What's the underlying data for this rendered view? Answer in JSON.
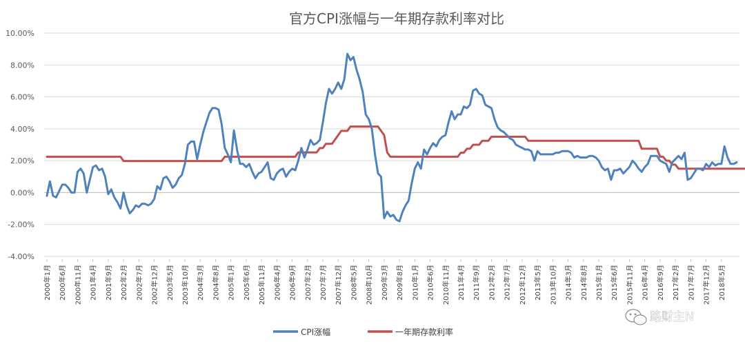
{
  "chart_data": {
    "type": "line",
    "title": "官方CPI涨幅与一年期存款利率对比",
    "ylim": [
      -4,
      10
    ],
    "yticks": [
      "-4.00%",
      "-2.00%",
      "0.00%",
      "2.00%",
      "4.00%",
      "6.00%",
      "8.00%",
      "10.00%"
    ],
    "grid": true,
    "legend_position": "bottom",
    "x_start": "2000-01",
    "x_labels": [
      "2000年1月",
      "2000年6月",
      "2000年11月",
      "2001年4月",
      "2001年9月",
      "2002年2月",
      "2002年7月",
      "2002年12月",
      "2003年5月",
      "2003年10月",
      "2004年3月",
      "2004年8月",
      "2005年1月",
      "2005年6月",
      "2005年11月",
      "2006年4月",
      "2006年9月",
      "2007年2月",
      "2007年7月",
      "2007年12月",
      "2008年5月",
      "2008年10月",
      "2009年3月",
      "2009年8月",
      "2010年1月",
      "2010年6月",
      "2010年11月",
      "2011年4月",
      "2011年9月",
      "2012年2月",
      "2012年7月",
      "2012年12月",
      "2013年5月",
      "2013年10月",
      "2014年3月",
      "2014年8月",
      "2015年1月",
      "2015年6月",
      "2015年11月",
      "2016年4月",
      "2016年9月",
      "2017年2月",
      "2017年7月",
      "2017年12月",
      "2018年5月"
    ],
    "series": [
      {
        "name": "CPI涨幅",
        "color": "#4F81BD",
        "values": [
          -0.2,
          0.7,
          -0.2,
          -0.3,
          0.1,
          0.5,
          0.5,
          0.3,
          0,
          0,
          1.3,
          1.5,
          1.2,
          0,
          0.8,
          1.6,
          1.7,
          1.4,
          1.5,
          1,
          -0.1,
          0.2,
          -0.3,
          -0.6,
          -1,
          0,
          -0.8,
          -1.3,
          -1.1,
          -0.8,
          -0.9,
          -0.7,
          -0.7,
          -0.8,
          -0.7,
          -0.4,
          0.4,
          0.2,
          0.9,
          1,
          0.7,
          0.3,
          0.5,
          0.9,
          1.1,
          1.8,
          3,
          3.2,
          3.2,
          2.1,
          3,
          3.8,
          4.4,
          5,
          5.3,
          5.3,
          5.2,
          4.3,
          2.8,
          2.4,
          1.9,
          3.9,
          2.7,
          1.8,
          1.8,
          1.6,
          1.8,
          1.3,
          0.9,
          1.2,
          1.3,
          1.6,
          1.9,
          0.9,
          0.8,
          1.2,
          1.4,
          1.5,
          1,
          1.3,
          1.5,
          1.4,
          2,
          2.8,
          2.2,
          2.7,
          3.3,
          3,
          3.1,
          3.3,
          4.4,
          5.6,
          6.5,
          6.2,
          6.5,
          6.9,
          6.5,
          7.1,
          8.7,
          8.3,
          8.5,
          7.7,
          7.1,
          6.3,
          4.9,
          4.6,
          4,
          2.4,
          1.2,
          1,
          -1.6,
          -1.2,
          -1.5,
          -1.4,
          -1.7,
          -1.8,
          -1.2,
          -0.8,
          -0.5,
          0.6,
          1.5,
          1.9,
          1.5,
          2.7,
          2.4,
          2.8,
          3.1,
          2.9,
          3.3,
          3.5,
          3.6,
          4.4,
          5.1,
          4.6,
          4.9,
          4.9,
          5.4,
          5.3,
          5.5,
          6.4,
          6.5,
          6.2,
          6.1,
          5.5,
          5.4,
          5.3,
          4.6,
          4.1,
          3.9,
          3.8,
          3.6,
          3.4,
          3.3,
          3,
          2.9,
          2.8,
          2.7,
          2.7,
          2.6,
          2,
          2.6,
          2.4,
          2.4,
          2.4,
          2.4,
          2.4,
          2.5,
          2.5,
          2.6,
          2.6,
          2.6,
          2.5,
          2.2,
          2.3,
          2.2,
          2.2,
          2.2,
          2.3,
          2.3,
          2.2,
          2,
          1.6,
          1.4,
          1.5,
          0.8,
          1.4,
          1.4,
          1.5,
          1.2,
          1.4,
          1.6,
          2,
          1.8,
          1.5,
          1.3,
          1.6,
          1.8,
          2.3,
          2.3,
          2.3,
          2,
          1.9,
          1.8,
          1.3,
          1.9,
          2.1,
          2.3,
          2.1,
          2.5,
          0.8,
          0.9,
          1.2,
          1.5,
          1.5,
          1.4,
          1.8,
          1.6,
          1.9,
          1.7,
          1.8,
          1.8,
          2.9,
          2.2,
          1.8,
          1.8,
          1.9
        ]
      },
      {
        "name": "一年期存款利率",
        "color": "#C0504D",
        "values": [
          2.25,
          2.25,
          2.25,
          2.25,
          2.25,
          2.25,
          2.25,
          2.25,
          2.25,
          2.25,
          2.25,
          2.25,
          2.25,
          2.25,
          2.25,
          2.25,
          2.25,
          2.25,
          2.25,
          2.25,
          2.25,
          2.25,
          2.25,
          2.25,
          2.25,
          1.98,
          1.98,
          1.98,
          1.98,
          1.98,
          1.98,
          1.98,
          1.98,
          1.98,
          1.98,
          1.98,
          1.98,
          1.98,
          1.98,
          1.98,
          1.98,
          1.98,
          1.98,
          1.98,
          1.98,
          1.98,
          1.98,
          1.98,
          1.98,
          1.98,
          1.98,
          1.98,
          1.98,
          1.98,
          1.98,
          1.98,
          1.98,
          1.98,
          2.25,
          2.25,
          2.25,
          2.25,
          2.25,
          2.25,
          2.25,
          2.25,
          2.25,
          2.25,
          2.25,
          2.25,
          2.25,
          2.25,
          2.25,
          2.25,
          2.25,
          2.25,
          2.25,
          2.25,
          2.25,
          2.25,
          2.25,
          2.25,
          2.52,
          2.52,
          2.52,
          2.52,
          2.52,
          2.52,
          2.52,
          2.79,
          2.79,
          3.06,
          3.06,
          3.06,
          3.33,
          3.6,
          3.87,
          3.87,
          3.87,
          4.14,
          4.14,
          4.14,
          4.14,
          4.14,
          4.14,
          4.14,
          4.14,
          4.14,
          4.14,
          3.87,
          3.6,
          2.52,
          2.25,
          2.25,
          2.25,
          2.25,
          2.25,
          2.25,
          2.25,
          2.25,
          2.25,
          2.25,
          2.25,
          2.25,
          2.25,
          2.25,
          2.25,
          2.25,
          2.25,
          2.25,
          2.25,
          2.25,
          2.25,
          2.25,
          2.25,
          2.5,
          2.5,
          2.75,
          2.75,
          3,
          3,
          3,
          3.25,
          3.25,
          3.25,
          3.5,
          3.5,
          3.5,
          3.5,
          3.5,
          3.5,
          3.5,
          3.5,
          3.5,
          3.5,
          3.5,
          3.5,
          3.25,
          3.25,
          3.25,
          3.25,
          3.25,
          3.25,
          3.25,
          3.25,
          3.25,
          3.25,
          3.25,
          3.25,
          3.25,
          3.25,
          3.25,
          3.25,
          3.25,
          3.25,
          3.25,
          3.25,
          3.25,
          3.25,
          3.25,
          3.25,
          3.25,
          3.25,
          3.25,
          3.25,
          3.25,
          3.25,
          3.25,
          3.25,
          3.25,
          3.25,
          3.25,
          3.25,
          3.25,
          2.75,
          2.75,
          2.75,
          2.75,
          2.75,
          2.75,
          2.25,
          2.25,
          2,
          2,
          1.75,
          1.75,
          1.5,
          1.5,
          1.5,
          1.5,
          1.5,
          1.5,
          1.5,
          1.5,
          1.5,
          1.5,
          1.5,
          1.5,
          1.5,
          1.5,
          1.5,
          1.5,
          1.5,
          1.5,
          1.5,
          1.5,
          1.5,
          1.5,
          1.5,
          1.5,
          1.5,
          1.5,
          1.5,
          1.5,
          1.5,
          1.5,
          1.5,
          1.5,
          1.5,
          1.5
        ]
      }
    ]
  },
  "watermark": {
    "text": "路财主N",
    "icon": "wechat-icon"
  }
}
